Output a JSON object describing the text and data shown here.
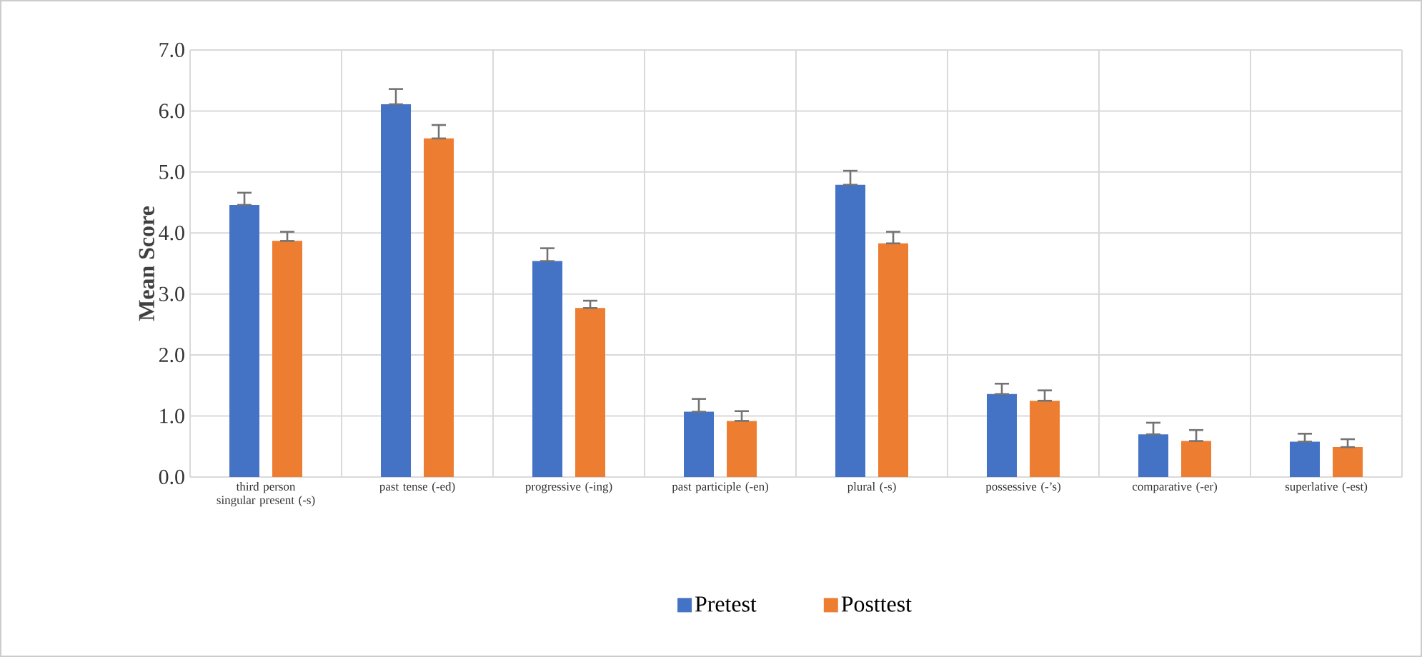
{
  "chart_data": {
    "type": "bar",
    "ylabel": "Mean Score",
    "categories": [
      "third person singular present (-s)",
      "past tense (-ed)",
      "progressive (-ing)",
      "past participle (-en)",
      "plural (-s)",
      "possessive (-’s)",
      "comparative (-er)",
      "superlative (-est)"
    ],
    "series": [
      {
        "name": "Pretest",
        "color": "#4472c4",
        "values": [
          4.46,
          6.11,
          3.54,
          1.07,
          4.79,
          1.36,
          0.7,
          0.58
        ],
        "errors": [
          [
            4.46,
            4.66
          ],
          [
            6.11,
            6.36
          ],
          [
            3.54,
            3.75
          ],
          [
            1.07,
            1.28
          ],
          [
            4.79,
            5.02
          ],
          [
            1.36,
            1.53
          ],
          [
            0.7,
            0.89
          ],
          [
            0.58,
            0.71
          ]
        ]
      },
      {
        "name": "Posttest",
        "color": "#ed7d31",
        "values": [
          3.87,
          5.55,
          2.77,
          0.92,
          3.83,
          1.25,
          0.59,
          0.49
        ],
        "errors": [
          [
            3.87,
            4.02
          ],
          [
            5.55,
            5.77
          ],
          [
            2.77,
            2.89
          ],
          [
            0.92,
            1.08
          ],
          [
            3.83,
            4.02
          ],
          [
            1.25,
            1.42
          ],
          [
            0.59,
            0.77
          ],
          [
            0.49,
            0.62
          ]
        ]
      }
    ],
    "ylim": [
      0,
      7
    ],
    "yticks": [
      {
        "value": 0,
        "label": "0.0"
      },
      {
        "value": 1,
        "label": "1.0"
      },
      {
        "value": 2,
        "label": "2.0"
      },
      {
        "value": 3,
        "label": "3.0"
      },
      {
        "value": 4,
        "label": "4.0"
      },
      {
        "value": 5,
        "label": "5.0"
      },
      {
        "value": 6,
        "label": "6.0"
      },
      {
        "value": 7,
        "label": "7.0"
      }
    ],
    "grid": true,
    "legend": "bottom"
  }
}
